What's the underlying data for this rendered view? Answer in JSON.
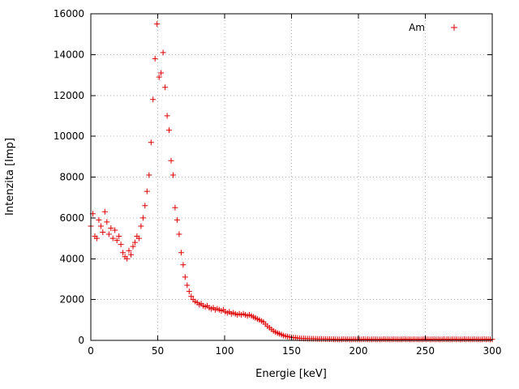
{
  "chart_data": {
    "type": "scatter",
    "title": "",
    "xlabel": "Energie [keV]",
    "ylabel": "Intenzita [Imp]",
    "xlim": [
      0,
      300
    ],
    "ylim": [
      0,
      16000
    ],
    "x_ticks": [
      0,
      50,
      100,
      150,
      200,
      250,
      300
    ],
    "y_ticks": [
      0,
      2000,
      4000,
      6000,
      8000,
      10000,
      12000,
      14000,
      16000
    ],
    "grid": true,
    "grid_color": "#b8b8b8",
    "legend_position": "top-right",
    "series": [
      {
        "name": "Am",
        "marker": "plus",
        "color": "#dd0000",
        "points": [
          [
            0,
            5600
          ],
          [
            1.5,
            6200
          ],
          [
            3,
            5100
          ],
          [
            4.5,
            5000
          ],
          [
            6,
            5900
          ],
          [
            7.5,
            5600
          ],
          [
            9,
            5300
          ],
          [
            10.5,
            6300
          ],
          [
            12,
            5800
          ],
          [
            13.5,
            5200
          ],
          [
            15,
            5500
          ],
          [
            16.5,
            5000
          ],
          [
            18,
            5400
          ],
          [
            19.5,
            4900
          ],
          [
            21,
            5100
          ],
          [
            22.5,
            4700
          ],
          [
            24,
            4300
          ],
          [
            25.5,
            4100
          ],
          [
            27,
            4000
          ],
          [
            28.5,
            4400
          ],
          [
            30,
            4200
          ],
          [
            31.5,
            4600
          ],
          [
            33,
            4800
          ],
          [
            34.5,
            5100
          ],
          [
            36,
            5000
          ],
          [
            37.5,
            5600
          ],
          [
            39,
            6000
          ],
          [
            40.5,
            6600
          ],
          [
            42,
            7300
          ],
          [
            43.5,
            8100
          ],
          [
            45,
            9700
          ],
          [
            46.5,
            11800
          ],
          [
            48,
            13800
          ],
          [
            49.5,
            15500
          ],
          [
            51,
            12900
          ],
          [
            52.5,
            13100
          ],
          [
            54,
            14100
          ],
          [
            55.5,
            12400
          ],
          [
            57,
            11000
          ],
          [
            58.5,
            10300
          ],
          [
            60,
            8800
          ],
          [
            61.5,
            8100
          ],
          [
            63,
            6500
          ],
          [
            64.5,
            5900
          ],
          [
            66,
            5200
          ],
          [
            67.5,
            4300
          ],
          [
            69,
            3700
          ],
          [
            70.5,
            3100
          ],
          [
            72,
            2700
          ],
          [
            73.5,
            2400
          ],
          [
            75,
            2150
          ],
          [
            76.5,
            2000
          ],
          [
            78,
            1900
          ],
          [
            79.5,
            1850
          ],
          [
            81,
            1750
          ],
          [
            82.5,
            1800
          ],
          [
            84,
            1700
          ],
          [
            85.5,
            1650
          ],
          [
            87,
            1700
          ],
          [
            88.5,
            1600
          ],
          [
            90,
            1550
          ],
          [
            91.5,
            1600
          ],
          [
            93,
            1500
          ],
          [
            94.5,
            1550
          ],
          [
            96,
            1500
          ],
          [
            97.5,
            1450
          ],
          [
            99,
            1500
          ],
          [
            100.5,
            1400
          ],
          [
            102,
            1350
          ],
          [
            103.5,
            1400
          ],
          [
            105,
            1300
          ],
          [
            106.5,
            1350
          ],
          [
            108,
            1300
          ],
          [
            109.5,
            1250
          ],
          [
            111,
            1300
          ],
          [
            112.5,
            1250
          ],
          [
            114,
            1300
          ],
          [
            115.5,
            1250
          ],
          [
            117,
            1200
          ],
          [
            118.5,
            1250
          ],
          [
            120,
            1200
          ],
          [
            121.5,
            1150
          ],
          [
            123,
            1100
          ],
          [
            124.5,
            1050
          ],
          [
            126,
            1000
          ],
          [
            127.5,
            950
          ],
          [
            129,
            900
          ],
          [
            130.5,
            800
          ],
          [
            132,
            700
          ],
          [
            133.5,
            620
          ],
          [
            135,
            540
          ],
          [
            136.5,
            470
          ],
          [
            138,
            410
          ],
          [
            139.5,
            360
          ],
          [
            141,
            320
          ],
          [
            142.5,
            280
          ],
          [
            144,
            240
          ],
          [
            145.5,
            210
          ],
          [
            147,
            190
          ],
          [
            148.5,
            170
          ],
          [
            150,
            150
          ],
          [
            151.5,
            140
          ],
          [
            153,
            125
          ],
          [
            154.5,
            115
          ],
          [
            156,
            105
          ],
          [
            157.5,
            100
          ],
          [
            159,
            95
          ],
          [
            160.5,
            90
          ],
          [
            162,
            85
          ],
          [
            163.5,
            85
          ],
          [
            165,
            80
          ],
          [
            166.5,
            78
          ],
          [
            168,
            75
          ],
          [
            169.5,
            72
          ],
          [
            171,
            70
          ],
          [
            172.5,
            68
          ],
          [
            174,
            66
          ],
          [
            175.5,
            64
          ],
          [
            177,
            62
          ],
          [
            178.5,
            60
          ],
          [
            180,
            58
          ],
          [
            181.5,
            56
          ],
          [
            183,
            48
          ],
          [
            184.5,
            52
          ],
          [
            186,
            44
          ],
          [
            187.5,
            50
          ],
          [
            189,
            58
          ],
          [
            190.5,
            46
          ],
          [
            192,
            54
          ],
          [
            193.5,
            42
          ],
          [
            195,
            50
          ],
          [
            196.5,
            56
          ],
          [
            198,
            48
          ],
          [
            199.5,
            52
          ],
          [
            201,
            44
          ],
          [
            202.5,
            50
          ],
          [
            204,
            58
          ],
          [
            205.5,
            46
          ],
          [
            207,
            54
          ],
          [
            208.5,
            42
          ],
          [
            210,
            50
          ],
          [
            211.5,
            56
          ],
          [
            213,
            48
          ],
          [
            214.5,
            52
          ],
          [
            216,
            44
          ],
          [
            217.5,
            50
          ],
          [
            219,
            58
          ],
          [
            220.5,
            46
          ],
          [
            222,
            54
          ],
          [
            223.5,
            42
          ],
          [
            225,
            50
          ],
          [
            226.5,
            56
          ],
          [
            228,
            48
          ],
          [
            229.5,
            52
          ],
          [
            231,
            44
          ],
          [
            232.5,
            50
          ],
          [
            234,
            58
          ],
          [
            235.5,
            46
          ],
          [
            237,
            54
          ],
          [
            238.5,
            42
          ],
          [
            240,
            50
          ],
          [
            241.5,
            56
          ],
          [
            243,
            48
          ],
          [
            244.5,
            52
          ],
          [
            246,
            44
          ],
          [
            247.5,
            50
          ],
          [
            249,
            58
          ],
          [
            250.5,
            46
          ],
          [
            252,
            54
          ],
          [
            253.5,
            42
          ],
          [
            255,
            50
          ],
          [
            256.5,
            56
          ],
          [
            258,
            48
          ],
          [
            259.5,
            52
          ],
          [
            261,
            44
          ],
          [
            262.5,
            50
          ],
          [
            264,
            58
          ],
          [
            265.5,
            46
          ],
          [
            267,
            54
          ],
          [
            268.5,
            42
          ],
          [
            270,
            50
          ],
          [
            271.5,
            56
          ],
          [
            273,
            48
          ],
          [
            274.5,
            52
          ],
          [
            276,
            44
          ],
          [
            277.5,
            50
          ],
          [
            279,
            58
          ],
          [
            280.5,
            46
          ],
          [
            282,
            54
          ],
          [
            283.5,
            42
          ],
          [
            285,
            50
          ],
          [
            286.5,
            56
          ],
          [
            288,
            48
          ],
          [
            289.5,
            52
          ],
          [
            291,
            44
          ],
          [
            292.5,
            50
          ],
          [
            294,
            58
          ],
          [
            295.5,
            46
          ],
          [
            297,
            54
          ],
          [
            298.5,
            42
          ],
          [
            300,
            50
          ]
        ]
      }
    ]
  }
}
